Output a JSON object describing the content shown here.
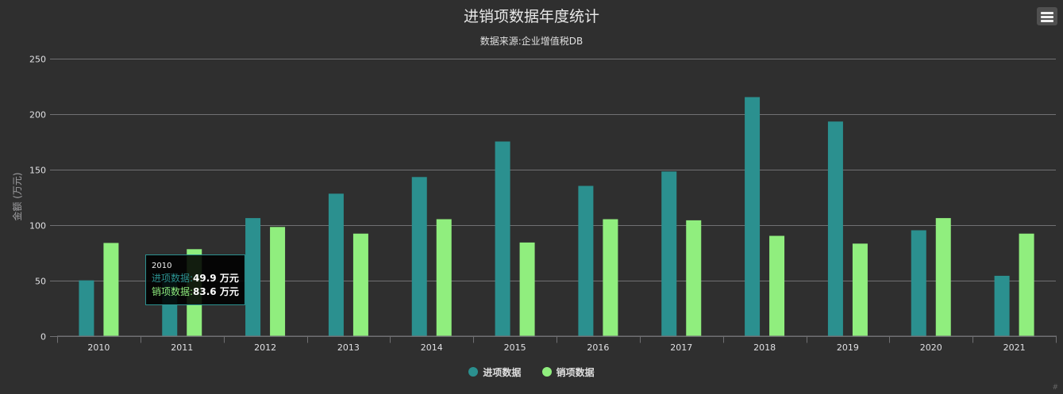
{
  "chart": {
    "title": "进销项数据年度统计",
    "subtitle": "数据来源:企业增值税DB",
    "menu_icon": "hamburger-menu-icon",
    "credit": "#"
  },
  "chart_data": {
    "type": "bar",
    "title": "进销项数据年度统计",
    "subtitle": "数据来源:企业增值税DB",
    "xlabel": "",
    "ylabel": "金额 (万元)",
    "ylim": [
      0,
      250
    ],
    "yticks": [
      0,
      50,
      100,
      150,
      200,
      250
    ],
    "grid": true,
    "legend_position": "bottom-center",
    "categories": [
      "2010",
      "2011",
      "2012",
      "2013",
      "2014",
      "2015",
      "2016",
      "2017",
      "2018",
      "2019",
      "2020",
      "2021"
    ],
    "series": [
      {
        "name": "进项数据",
        "color": "#2b908f",
        "values": [
          49.9,
          50,
          106,
          128,
          143,
          175,
          135,
          148,
          215,
          193,
          95,
          54
        ]
      },
      {
        "name": "销项数据",
        "color": "#90ee7e",
        "values": [
          83.6,
          78,
          98,
          92,
          105,
          84,
          105,
          104,
          90,
          83,
          106,
          92
        ]
      }
    ]
  },
  "tooltip": {
    "header": "2010",
    "rows": [
      {
        "label": "进项数据:",
        "value": "49.9 万元",
        "color": "#2b908f"
      },
      {
        "label": "销项数据:",
        "value": "83.6 万元",
        "color": "#90ee7e"
      }
    ]
  }
}
